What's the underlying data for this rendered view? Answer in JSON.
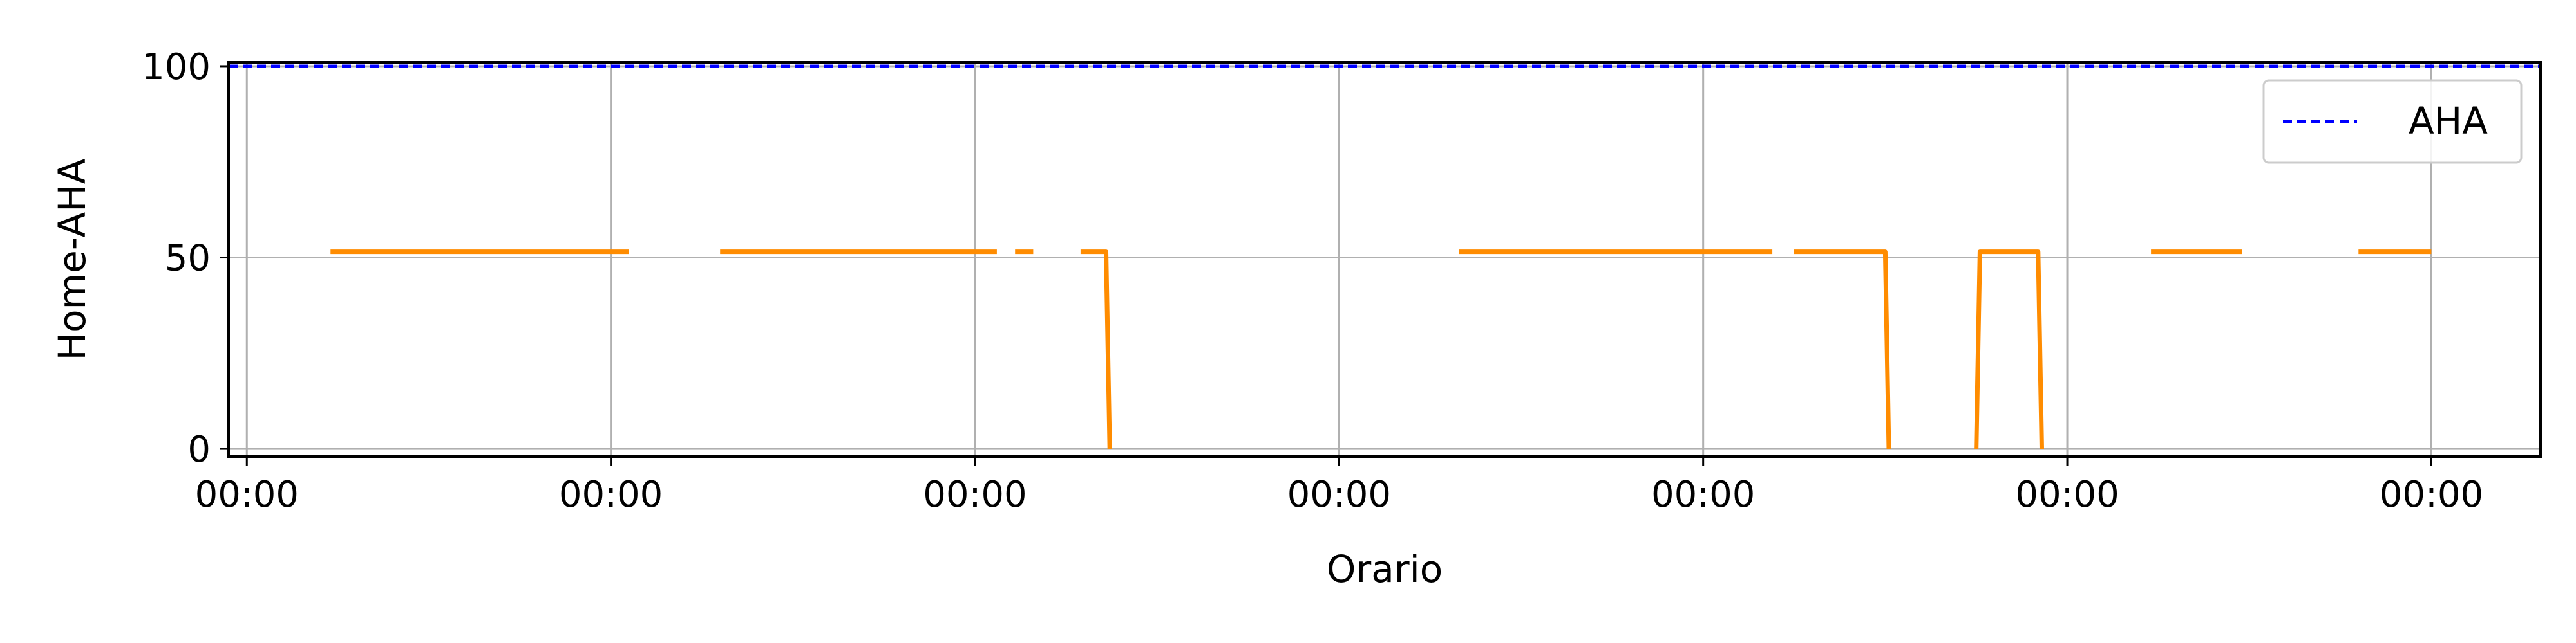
{
  "chart_data": {
    "type": "line",
    "xlabel": "Orario",
    "ylabel": "Home-AHA",
    "ylim": [
      -2,
      101
    ],
    "xlim": [
      -0.05,
      6.3
    ],
    "grid": true,
    "legend_placement": "top-right",
    "x_ticks": [
      0,
      1,
      2,
      3,
      4,
      5,
      6
    ],
    "x_tick_labels": [
      "00:00",
      "00:00",
      "00:00",
      "00:00",
      "00:00",
      "00:00",
      "00:00"
    ],
    "y_ticks": [
      0,
      50,
      100
    ],
    "y_tick_labels": [
      "0",
      "50",
      "100"
    ],
    "series": [
      {
        "name": "AHA",
        "style": "dashed",
        "color": "#0000ff",
        "segments": [
          [
            [
              -0.05,
              100
            ],
            [
              6.3,
              100
            ]
          ]
        ]
      },
      {
        "style": "solid",
        "color": "#ff8c00",
        "segments": [
          [
            [
              0.23,
              51.5
            ],
            [
              1.05,
              51.5
            ]
          ],
          [
            [
              1.3,
              51.5
            ],
            [
              2.06,
              51.5
            ]
          ],
          [
            [
              2.11,
              51.5
            ],
            [
              2.16,
              51.5
            ]
          ],
          [
            [
              2.29,
              51.5
            ],
            [
              2.36,
              51.5
            ],
            [
              2.37,
              0
            ]
          ],
          [
            [
              3.33,
              51.5
            ],
            [
              4.19,
              51.5
            ]
          ],
          [
            [
              4.25,
              51.5
            ],
            [
              4.5,
              51.5
            ],
            [
              4.51,
              0
            ]
          ],
          [
            [
              4.75,
              0
            ],
            [
              4.76,
              51.5
            ],
            [
              4.92,
              51.5
            ],
            [
              4.93,
              0
            ]
          ],
          [
            [
              5.23,
              51.5
            ],
            [
              5.48,
              51.5
            ]
          ],
          [
            [
              5.8,
              51.5
            ],
            [
              6.0,
              51.5
            ]
          ]
        ]
      }
    ]
  }
}
